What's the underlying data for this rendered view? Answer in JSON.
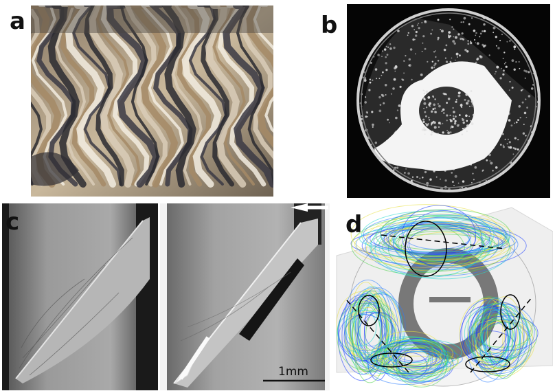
{
  "figure": {
    "panel_labels": [
      "a",
      "b",
      "c",
      "d"
    ],
    "scale_bar_label": "1mm",
    "colors": {
      "rock_dark": "#2a2a30",
      "rock_light": "#d9cdb8",
      "rock_tan": "#a58a66",
      "disk_bg": "#050505",
      "grain": "#d8d8d8",
      "xray_bg": "#8f8f8f",
      "stream_blue": "#1a3cff",
      "stream_cyan": "#20d8d0",
      "stream_green": "#4fd24a",
      "stream_yellow": "#e8e040"
    }
  }
}
